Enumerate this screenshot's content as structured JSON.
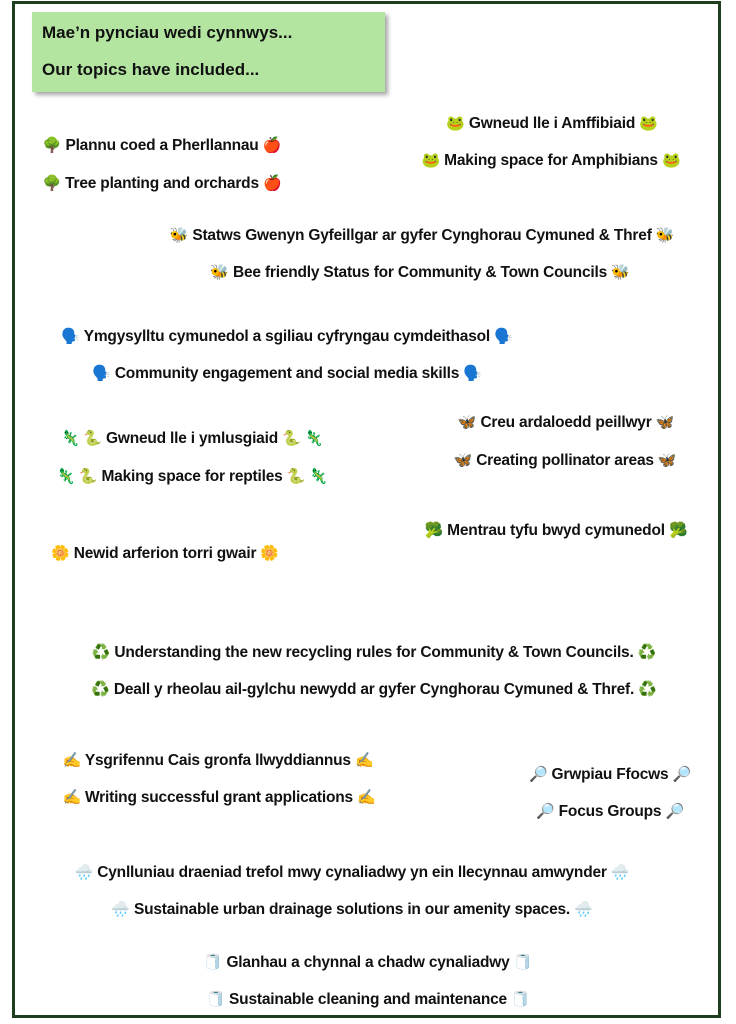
{
  "header": {
    "welsh": "Mae’n pynciau wedi cynnwys...",
    "english": "Our topics have included..."
  },
  "colors": {
    "header_bg": "#b3e5a1",
    "border": "#1f3d1f"
  },
  "topics": [
    {
      "icon": "🌳",
      "icon_end": "🍎",
      "icon_name": "tree-icon",
      "text": "Plannu coed a Pherllannau"
    },
    {
      "icon": "🌳",
      "icon_end": "🍎",
      "icon_name": "tree-icon",
      "text": "Tree planting and orchards"
    },
    {
      "icon": "🐸",
      "icon_end": "🐸",
      "icon_name": "frog-icon",
      "text": "Gwneud lle i Amffibiaid"
    },
    {
      "icon": "🐸",
      "icon_end": "🐸",
      "icon_name": "frog-icon",
      "text": "Making space for Amphibians"
    },
    {
      "icon": "🐝",
      "icon_end": "🐝",
      "icon_name": "bee-icon",
      "text": "Statws Gwenyn Gyfeillgar ar gyfer Cynghorau Cymuned & Thref"
    },
    {
      "icon": "🐝",
      "icon_end": "🐝",
      "icon_name": "bee-icon",
      "text": "Bee friendly Status for Community & Town Councils"
    },
    {
      "icon": "🗣️",
      "icon_end": "🗣️",
      "icon_name": "speaking-head-icon",
      "text": "Ymgysylltu cymunedol a sgiliau cyfryngau cymdeithasol"
    },
    {
      "icon": "🗣️",
      "icon_end": "🗣️",
      "icon_name": "speaking-head-icon",
      "text": "Community engagement and social media skills"
    },
    {
      "icon": "🦎 🐍",
      "icon_end": "🐍 🦎",
      "icon_name": "lizard-snake-icon",
      "text": "Gwneud lle i ymlusgiaid"
    },
    {
      "icon": "🦎 🐍",
      "icon_end": "🐍 🦎",
      "icon_name": "lizard-snake-icon",
      "text": "Making space for reptiles"
    },
    {
      "icon": "🦋",
      "icon_end": "🦋",
      "icon_name": "butterfly-icon",
      "text": "Creu ardaloedd peillwyr"
    },
    {
      "icon": "🦋",
      "icon_end": "🦋",
      "icon_name": "butterfly-icon",
      "text": "Creating pollinator areas"
    },
    {
      "icon": "🥦",
      "icon_end": "🥦",
      "icon_name": "broccoli-icon",
      "text": "Mentrau tyfu bwyd cymunedol"
    },
    {
      "icon": "🌼",
      "icon_end": "🌼",
      "icon_name": "flower-icon",
      "text": "Newid arferion torri gwair"
    },
    {
      "icon": "♻️",
      "icon_end": "♻️",
      "icon_name": "recycle-icon",
      "text": "Understanding the new recycling rules for Community & Town Councils."
    },
    {
      "icon": "♻️",
      "icon_end": "♻️",
      "icon_name": "recycle-icon",
      "text": "Deall y rheolau ail-gylchu newydd ar gyfer Cynghorau Cymuned & Thref."
    },
    {
      "icon": "✍️",
      "icon_end": "✍️",
      "icon_name": "writing-hand-icon",
      "text": "Ysgrifennu Cais gronfa llwyddiannus"
    },
    {
      "icon": "✍️",
      "icon_end": "✍️",
      "icon_name": "writing-hand-icon",
      "text": "Writing successful grant applications"
    },
    {
      "icon": "🔎",
      "icon_end": "🔎",
      "icon_name": "magnifier-icon",
      "text": "Grwpiau Ffocws"
    },
    {
      "icon": "🔎",
      "icon_end": "🔎",
      "icon_name": "magnifier-icon",
      "text": "Focus Groups"
    },
    {
      "icon": "🌧️",
      "icon_end": "🌧️",
      "icon_name": "rain-cloud-icon",
      "text": "Cynlluniau draeniad trefol mwy cynaliadwy yn ein llecynnau amwynder"
    },
    {
      "icon": "🌧️",
      "icon_end": "🌧️",
      "icon_name": "rain-cloud-icon",
      "text": "Sustainable urban drainage solutions in our amenity spaces."
    },
    {
      "icon": "🧻",
      "icon_end": "🧻",
      "icon_name": "toilet-roll-icon",
      "text": "Glanhau a chynnal a chadw cynaliadwy"
    },
    {
      "icon": "🧻",
      "icon_end": "🧻",
      "icon_name": "toilet-roll-icon",
      "text": "Sustainable cleaning and maintenance"
    }
  ]
}
